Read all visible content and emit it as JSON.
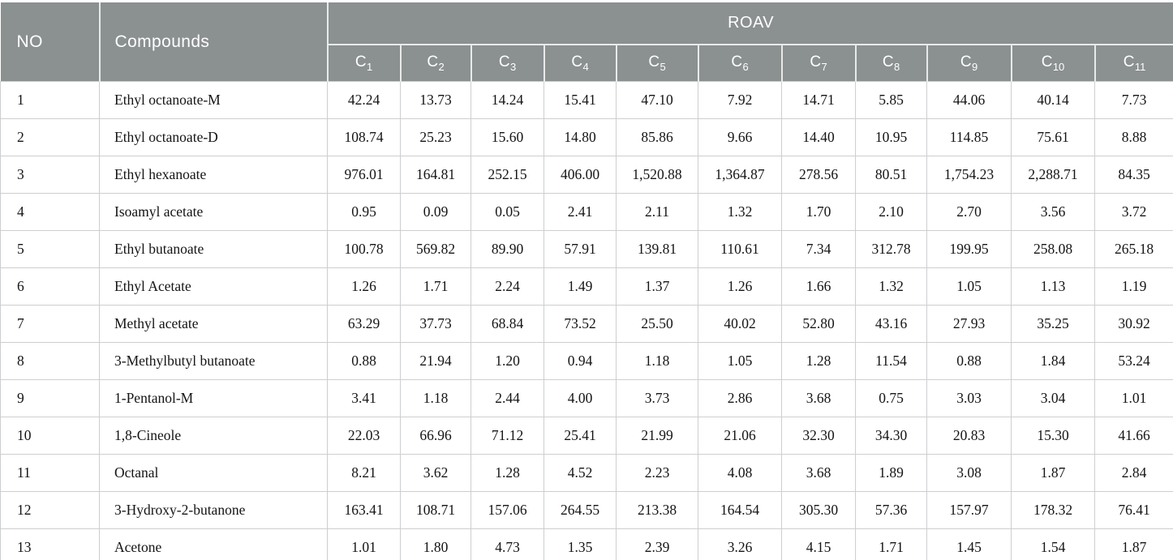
{
  "colors": {
    "header_bg": "#8b9091",
    "header_text": "#ffffff",
    "grid_line": "#cdced0",
    "bottom_border": "#9aa0a1",
    "body_text": "#141414"
  },
  "table": {
    "header": {
      "no": "NO",
      "compounds": "Compounds",
      "group": "ROAV",
      "sub_columns": [
        {
          "base": "C",
          "sub": "1"
        },
        {
          "base": "C",
          "sub": "2"
        },
        {
          "base": "C",
          "sub": "3"
        },
        {
          "base": "C",
          "sub": "4"
        },
        {
          "base": "C",
          "sub": "5"
        },
        {
          "base": "C",
          "sub": "6"
        },
        {
          "base": "C",
          "sub": "7"
        },
        {
          "base": "C",
          "sub": "8"
        },
        {
          "base": "C",
          "sub": "9"
        },
        {
          "base": "C",
          "sub": "10"
        },
        {
          "base": "C",
          "sub": "11"
        }
      ]
    },
    "rows": [
      {
        "no": "1",
        "compound": "Ethyl octanoate-M",
        "values": [
          "42.24",
          "13.73",
          "14.24",
          "15.41",
          "47.10",
          "7.92",
          "14.71",
          "5.85",
          "44.06",
          "40.14",
          "7.73"
        ]
      },
      {
        "no": "2",
        "compound": "Ethyl octanoate-D",
        "values": [
          "108.74",
          "25.23",
          "15.60",
          "14.80",
          "85.86",
          "9.66",
          "14.40",
          "10.95",
          "114.85",
          "75.61",
          "8.88"
        ]
      },
      {
        "no": "3",
        "compound": "Ethyl hexanoate",
        "values": [
          "976.01",
          "164.81",
          "252.15",
          "406.00",
          "1,520.88",
          "1,364.87",
          "278.56",
          "80.51",
          "1,754.23",
          "2,288.71",
          "84.35"
        ]
      },
      {
        "no": "4",
        "compound": "Isoamyl acetate",
        "values": [
          "0.95",
          "0.09",
          "0.05",
          "2.41",
          "2.11",
          "1.32",
          "1.70",
          "2.10",
          "2.70",
          "3.56",
          "3.72"
        ]
      },
      {
        "no": "5",
        "compound": "Ethyl butanoate",
        "values": [
          "100.78",
          "569.82",
          "89.90",
          "57.91",
          "139.81",
          "110.61",
          "7.34",
          "312.78",
          "199.95",
          "258.08",
          "265.18"
        ]
      },
      {
        "no": "6",
        "compound": "Ethyl Acetate",
        "values": [
          "1.26",
          "1.71",
          "2.24",
          "1.49",
          "1.37",
          "1.26",
          "1.66",
          "1.32",
          "1.05",
          "1.13",
          "1.19"
        ]
      },
      {
        "no": "7",
        "compound": "Methyl acetate",
        "values": [
          "63.29",
          "37.73",
          "68.84",
          "73.52",
          "25.50",
          "40.02",
          "52.80",
          "43.16",
          "27.93",
          "35.25",
          "30.92"
        ]
      },
      {
        "no": "8",
        "compound": "3-Methylbutyl butanoate",
        "values": [
          "0.88",
          "21.94",
          "1.20",
          "0.94",
          "1.18",
          "1.05",
          "1.28",
          "11.54",
          "0.88",
          "1.84",
          "53.24"
        ]
      },
      {
        "no": "9",
        "compound": "1-Pentanol-M",
        "values": [
          "3.41",
          "1.18",
          "2.44",
          "4.00",
          "3.73",
          "2.86",
          "3.68",
          "0.75",
          "3.03",
          "3.04",
          "1.01"
        ]
      },
      {
        "no": "10",
        "compound": "1,8-Cineole",
        "values": [
          "22.03",
          "66.96",
          "71.12",
          "25.41",
          "21.99",
          "21.06",
          "32.30",
          "34.30",
          "20.83",
          "15.30",
          "41.66"
        ]
      },
      {
        "no": "11",
        "compound": "Octanal",
        "values": [
          "8.21",
          "3.62",
          "1.28",
          "4.52",
          "2.23",
          "4.08",
          "3.68",
          "1.89",
          "3.08",
          "1.87",
          "2.84"
        ]
      },
      {
        "no": "12",
        "compound": "3-Hydroxy-2-butanone",
        "values": [
          "163.41",
          "108.71",
          "157.06",
          "264.55",
          "213.38",
          "164.54",
          "305.30",
          "57.36",
          "157.97",
          "178.32",
          "76.41"
        ]
      },
      {
        "no": "13",
        "compound": "Acetone",
        "values": [
          "1.01",
          "1.80",
          "4.73",
          "1.35",
          "2.39",
          "3.26",
          "4.15",
          "1.71",
          "1.45",
          "1.54",
          "1.87"
        ]
      }
    ]
  }
}
